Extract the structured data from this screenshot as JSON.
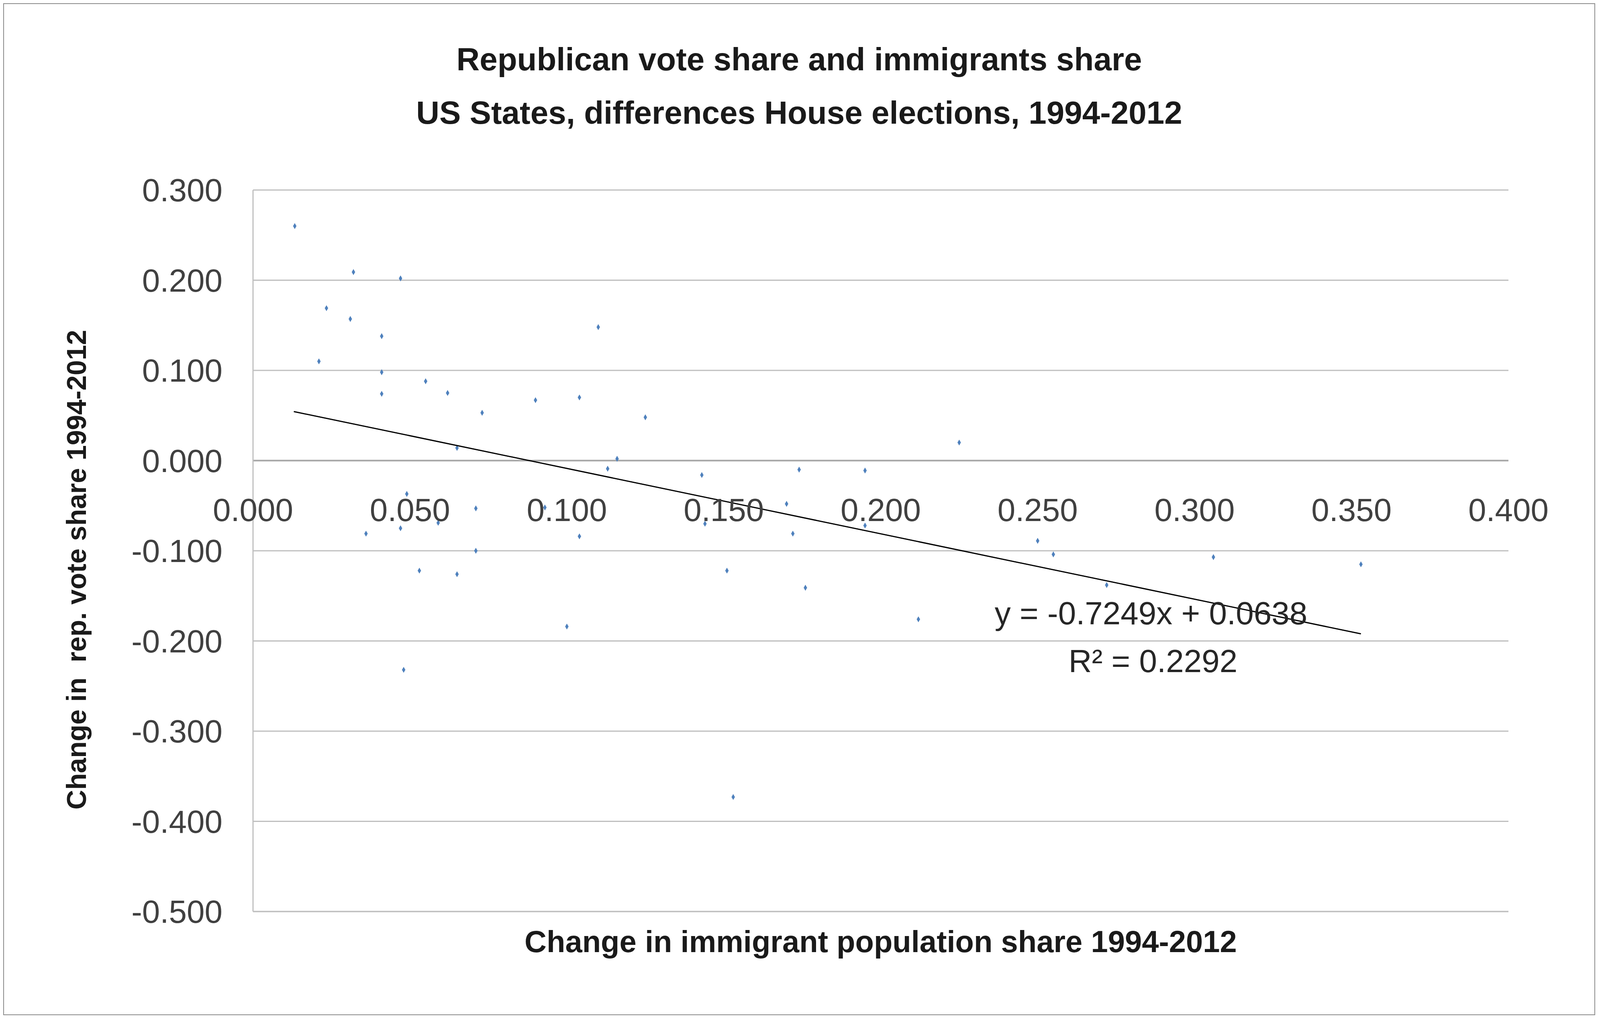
{
  "chart_data": {
    "type": "scatter",
    "title": "Republican vote share and  immigrants share",
    "subtitle": "US States, differences House elections, 1994-2012",
    "x_label": "Change in immigrant population share 1994-2012",
    "y_label": "Change in  rep. vote share 1994-2012",
    "x": [
      0.0133,
      0.0234,
      0.021,
      0.031,
      0.032,
      0.047,
      0.041,
      0.041,
      0.041,
      0.055,
      0.062,
      0.065,
      0.073,
      0.049,
      0.036,
      0.047,
      0.059,
      0.053,
      0.065,
      0.071,
      0.071,
      0.048,
      0.09,
      0.093,
      0.104,
      0.11,
      0.104,
      0.1,
      0.113,
      0.116,
      0.125,
      0.143,
      0.144,
      0.151,
      0.153,
      0.17,
      0.172,
      0.174,
      0.176,
      0.195,
      0.195,
      0.212,
      0.225,
      0.25,
      0.255,
      0.272,
      0.306,
      0.353
    ],
    "values": [
      0.26,
      0.169,
      0.11,
      0.157,
      0.209,
      0.202,
      0.138,
      0.098,
      0.074,
      0.088,
      0.075,
      0.014,
      0.053,
      -0.037,
      -0.081,
      -0.075,
      -0.069,
      -0.122,
      -0.126,
      -0.053,
      -0.1,
      -0.232,
      0.067,
      -0.052,
      0.07,
      0.148,
      -0.084,
      -0.184,
      -0.009,
      0.002,
      0.048,
      -0.016,
      -0.07,
      -0.122,
      -0.373,
      -0.048,
      -0.081,
      -0.01,
      -0.141,
      -0.011,
      -0.072,
      -0.176,
      0.02,
      -0.089,
      -0.104,
      -0.138,
      -0.107,
      -0.115
    ],
    "color": "#4f81bd",
    "marker": "diamond",
    "xlim": [
      0,
      0.4
    ],
    "xticks": [
      {
        "value": 0,
        "label": "0.000"
      },
      {
        "value": 0.05,
        "label": "0.050"
      },
      {
        "value": 0.1,
        "label": "0.100"
      },
      {
        "value": 0.15,
        "label": "0.150"
      },
      {
        "value": 0.2,
        "label": "0.200"
      },
      {
        "value": 0.25,
        "label": "0.250"
      },
      {
        "value": 0.3,
        "label": "0.300"
      },
      {
        "value": 0.35,
        "label": "0.350"
      },
      {
        "value": 0.4,
        "label": "0.400"
      }
    ],
    "ylim": [
      -0.5,
      0.3
    ],
    "yticks": [
      {
        "value": -0.5,
        "label": "-0.500"
      },
      {
        "value": -0.4,
        "label": "-0.400"
      },
      {
        "value": -0.3,
        "label": "-0.300"
      },
      {
        "value": -0.2,
        "label": "-0.200"
      },
      {
        "value": -0.1,
        "label": "-0.100"
      },
      {
        "value": 0,
        "label": "0.000"
      },
      {
        "value": 0.1,
        "label": "0.100"
      },
      {
        "value": 0.2,
        "label": "0.200"
      },
      {
        "value": 0.3,
        "label": "0.300"
      }
    ],
    "grid": true,
    "trendline": {
      "slope": -0.7249,
      "intercept": 0.0638,
      "x": [
        0.013,
        0.353
      ],
      "label": "y = -0.7249x + 0.0638",
      "r2_label": "R² = 0.2292"
    }
  }
}
